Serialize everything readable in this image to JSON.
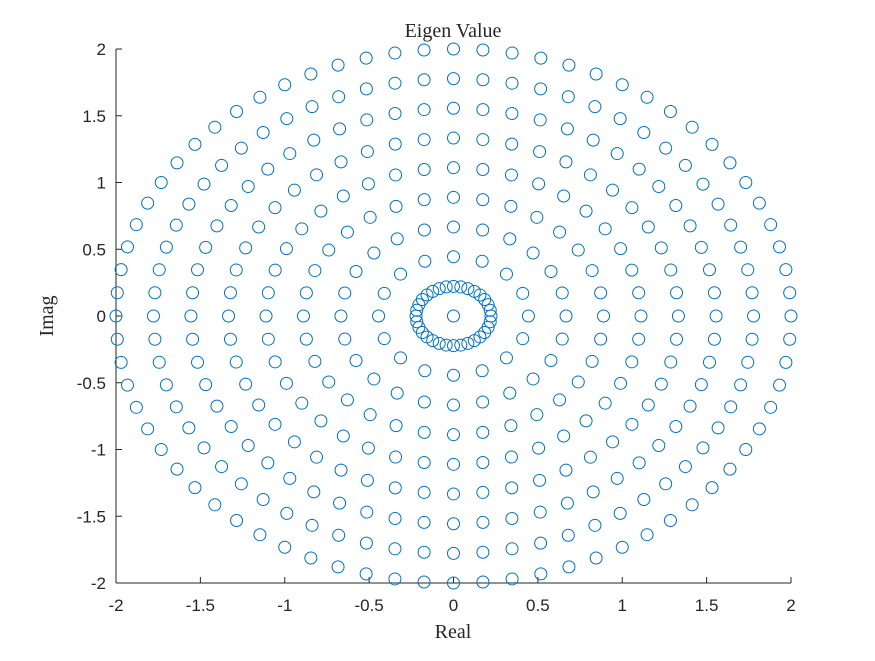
{
  "chart_data": {
    "type": "scatter",
    "title": "Eigen Value",
    "xlabel": "Real",
    "ylabel": "Imag",
    "xlim": [
      -2,
      2
    ],
    "ylim": [
      -2,
      2
    ],
    "xticks": [
      -2,
      -1.5,
      -1,
      -0.5,
      0,
      0.5,
      1,
      1.5,
      2
    ],
    "xtick_labels": [
      "-2",
      "-1.5",
      "-1",
      "-0.5",
      "0",
      "0.5",
      "1",
      "1.5",
      "2"
    ],
    "yticks": [
      -2,
      -1.5,
      -1,
      -0.5,
      0,
      0.5,
      1,
      1.5,
      2
    ],
    "ytick_labels": [
      "-2",
      "-1.5",
      "-1",
      "-0.5",
      "0",
      "0.5",
      "1",
      "1.5",
      "2"
    ],
    "grid": false,
    "legend": "none",
    "marker": "circle-open",
    "marker_color": "#0072BD",
    "series": [
      {
        "points_by_ring": [
          {
            "radius": 0,
            "count": 1
          },
          {
            "radius": 0.222,
            "count": 32
          },
          {
            "radius": 0.444,
            "count": 16
          },
          {
            "radius": 0.667,
            "count": 24
          },
          {
            "radius": 0.889,
            "count": 32
          },
          {
            "radius": 1.111,
            "count": 40
          },
          {
            "radius": 1.333,
            "count": 48
          },
          {
            "radius": 1.556,
            "count": 56
          },
          {
            "radius": 1.778,
            "count": 64
          },
          {
            "radius": 2.0,
            "count": 72
          }
        ]
      }
    ]
  }
}
